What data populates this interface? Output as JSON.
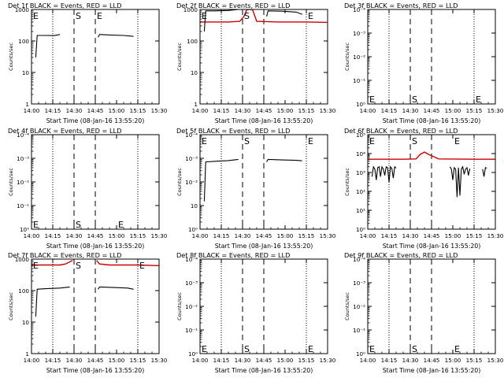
{
  "chart_data": [
    {
      "type": "line",
      "title": "Det 1f BLACK = Events, RED = LLD",
      "xlabel": "Start Time (08-Jan-16 13:55:20)",
      "ylabel": "Counts/sec",
      "yscale": "log",
      "ylim": [
        1,
        1000
      ],
      "ytick_labels": [
        "1",
        "10",
        "100",
        "1000"
      ],
      "xlim": [
        "14:00",
        "15:30"
      ],
      "xtick_labels": [
        "14:00",
        "14:15",
        "14:30",
        "14:45",
        "15:00",
        "15:15",
        "15:30"
      ],
      "markers": {
        "E_left": "14:00",
        "S": "14:30",
        "E_right": "14:45"
      },
      "marker_labels": {
        "E_left": "E",
        "S": "S",
        "E_right": "E"
      },
      "vlines_dotted": [
        "14:15",
        "15:15"
      ],
      "vlines_dashed": [
        "14:30",
        "14:45"
      ],
      "series": [
        {
          "color": "#000000",
          "segments": [
            {
              "x": [
                "14:03",
                "14:04",
                "14:10",
                "14:16",
                "14:20"
              ],
              "y": [
                30,
                150,
                150,
                148,
                160
              ]
            },
            {
              "x": [
                "14:47",
                "14:48",
                "14:55",
                "15:05",
                "15:12"
              ],
              "y": [
                130,
                160,
                155,
                150,
                140
              ]
            }
          ]
        }
      ]
    },
    {
      "type": "line",
      "title": "Det 2f BLACK = Events, RED = LLD",
      "xlabel": "Start Time (08-Jan-16 13:55:20)",
      "ylabel": "Counts/sec",
      "yscale": "log",
      "ylim": [
        1,
        1000
      ],
      "ytick_labels": [
        "1",
        "10",
        "100",
        "1000"
      ],
      "xlim": [
        "14:00",
        "15:30"
      ],
      "xtick_labels": [
        "14:00",
        "14:15",
        "14:30",
        "14:45",
        "15:00",
        "15:15",
        "15:30"
      ],
      "markers": {
        "E_left": "14:00",
        "S": "14:30",
        "E_right": "15:15"
      },
      "marker_labels": {
        "E_left": "E",
        "S": "S",
        "E_right": "E"
      },
      "vlines_dotted": [
        "14:15",
        "15:15"
      ],
      "vlines_dashed": [
        "14:30",
        "14:45"
      ],
      "series": [
        {
          "color": "#cc0000",
          "segments": [
            {
              "x": [
                "14:00",
                "14:20",
                "14:28",
                "14:31",
                "14:33",
                "14:37",
                "14:40",
                "14:55",
                "15:15",
                "15:30"
              ],
              "y": [
                400,
                400,
                420,
                600,
                1000,
                1000,
                420,
                400,
                400,
                390
              ]
            }
          ]
        },
        {
          "color": "#000000",
          "segments": [
            {
              "x": [
                "14:03",
                "14:04",
                "14:10",
                "14:20",
                "14:27"
              ],
              "y": [
                200,
                900,
                900,
                930,
                1000
              ]
            },
            {
              "x": [
                "14:47",
                "14:48",
                "14:58",
                "15:08",
                "15:12"
              ],
              "y": [
                600,
                900,
                880,
                820,
                700
              ]
            }
          ]
        }
      ]
    },
    {
      "type": "line",
      "title": "Det 3f BLACK = Events, RED = LLD",
      "xlabel": "Start Time (08-Jan-16 13:55:20)",
      "ylabel": "Counts/sec",
      "yscale": "log",
      "ylim": [
        1,
        10000
      ],
      "ytick_labels": [
        "10⁰",
        "10⁻¹",
        "10⁻²",
        "10⁻³",
        "10⁻⁴"
      ],
      "xlim": [
        "14:00",
        "15:30"
      ],
      "xtick_labels": [
        "14:00",
        "14:15",
        "14:30",
        "14:45",
        "15:00",
        "15:15",
        "15:30"
      ],
      "markers": {
        "E_left": "14:00",
        "S": "14:30",
        "E_right": "15:15"
      },
      "marker_labels": {
        "E_left": "E",
        "S": "S",
        "E_right": "E"
      },
      "vlines_dotted": [
        "14:15",
        "15:15"
      ],
      "vlines_dashed": [
        "14:30",
        "14:45"
      ],
      "series": []
    },
    {
      "type": "line",
      "title": "Det 4f BLACK = Events, RED = LLD",
      "xlabel": "Start Time (08-Jan-16 13:55:20)",
      "ylabel": "Counts/sec",
      "yscale": "log",
      "ylim": [
        1,
        10000
      ],
      "ytick_labels": [
        "10⁰",
        "10⁻¹",
        "10⁻²",
        "10⁻³",
        "10⁻⁴"
      ],
      "xlim": [
        "14:00",
        "15:30"
      ],
      "xtick_labels": [
        "14:00",
        "14:15",
        "14:30",
        "14:45",
        "15:00",
        "15:15",
        "15:30"
      ],
      "markers": {
        "E_left": "14:00",
        "S": "14:30",
        "E_right": "15:00"
      },
      "marker_labels": {
        "E_left": "E",
        "S": "S",
        "E_right": "E"
      },
      "vlines_dotted": [
        "14:15",
        "15:15"
      ],
      "vlines_dashed": [
        "14:30",
        "14:45"
      ],
      "series": []
    },
    {
      "type": "line",
      "title": "Det 5f BLACK = Events, RED = LLD",
      "xlabel": "Start Time (08-Jan-16 13:55:20)",
      "ylabel": "Counts/sec",
      "yscale": "log",
      "ylim": [
        1,
        10000
      ],
      "ytick_labels": [
        "10⁰",
        "10",
        "10⁻²",
        "10⁻³",
        "10⁻⁴"
      ],
      "xlim": [
        "14:00",
        "15:30"
      ],
      "xtick_labels": [
        "14:00",
        "14:15",
        "14:30",
        "14:45",
        "15:00",
        "15:15",
        "15:30"
      ],
      "markers": {
        "E_left": "14:00",
        "S": "14:30",
        "E_right": "15:15"
      },
      "marker_labels": {
        "E_left": "E",
        "S": "S",
        "E_right": "E"
      },
      "vlines_dotted": [
        "14:15",
        "15:15"
      ],
      "vlines_dashed": [
        "14:30",
        "14:45"
      ],
      "series": [
        {
          "color": "#000000",
          "segments": [
            {
              "x": [
                "14:03",
                "14:04",
                "14:12",
                "14:20",
                "14:27"
              ],
              "y": [
                15,
                700,
                750,
                800,
                900
              ]
            },
            {
              "x": [
                "14:47",
                "14:48",
                "14:58",
                "15:08",
                "15:12"
              ],
              "y": [
                700,
                900,
                850,
                820,
                780
              ]
            }
          ]
        }
      ]
    },
    {
      "type": "line",
      "title": "Det 6f BLACK = Events, RED = LLD",
      "xlabel": "Start Time (08-Jan-16 13:55:20)",
      "ylabel": "Counts/sec",
      "yscale": "log",
      "ylim": [
        1,
        100000
      ],
      "ytick_labels": [
        "10⁰",
        "10¹",
        "10²",
        "10³",
        "10⁴",
        "10⁵"
      ],
      "xlim": [
        "14:00",
        "15:30"
      ],
      "xtick_labels": [
        "14:00",
        "14:15",
        "14:30",
        "14:45",
        "15:00",
        "15:15",
        "15:30"
      ],
      "markers": {
        "E_left": "14:00",
        "S": "14:30",
        "E_right": "15:00"
      },
      "marker_labels": {
        "E_left": "E",
        "S": "S",
        "E_right": "E"
      },
      "vlines_dotted": [
        "14:15",
        "15:15"
      ],
      "vlines_dashed": [
        "14:30",
        "14:45"
      ],
      "series": [
        {
          "color": "#cc0000",
          "segments": [
            {
              "x": [
                "14:00",
                "14:25",
                "14:34",
                "14:37",
                "14:40",
                "14:43",
                "14:50",
                "15:15",
                "15:30"
              ],
              "y": [
                5000,
                5000,
                5200,
                9000,
                12000,
                9000,
                5200,
                5000,
                5000
              ]
            }
          ]
        },
        {
          "color": "#000000",
          "segments": [
            {
              "x": [
                "14:03",
                "14:04",
                "14:05",
                "14:06",
                "14:07",
                "14:08",
                "14:09",
                "14:10",
                "14:11",
                "14:12",
                "14:13",
                "14:14",
                "14:15",
                "14:16",
                "14:17",
                "14:18",
                "14:19",
                "14:20"
              ],
              "y": [
                600,
                2000,
                1500,
                400,
                1800,
                2000,
                600,
                2000,
                1500,
                700,
                2000,
                1800,
                300,
                2000,
                1600,
                500,
                2000,
                1700
              ]
            },
            {
              "x": [
                "14:58",
                "14:59",
                "15:00",
                "15:01",
                "15:02",
                "15:03",
                "15:04",
                "15:05",
                "15:06",
                "15:07",
                "15:08",
                "15:09",
                "15:10",
                "15:11",
                "15:12"
              ],
              "y": [
                2000,
                1500,
                400,
                1800,
                1500,
                50,
                1800,
                60,
                1500,
                2000,
                800,
                1500,
                1800,
                700,
                1600
              ]
            },
            {
              "x": [
                "15:21",
                "15:22",
                "15:23",
                "15:24"
              ],
              "y": [
                1500,
                600,
                1800,
                1700
              ]
            }
          ]
        }
      ]
    },
    {
      "type": "line",
      "title": "Det 7f BLACK = Events, RED = LLD",
      "xlabel": "Start Time (08-Jan-16 13:55:20)",
      "ylabel": "Counts/sec",
      "yscale": "log",
      "ylim": [
        1,
        1000
      ],
      "ytick_labels": [
        "1",
        "10",
        "100",
        "1000"
      ],
      "xlim": [
        "14:00",
        "15:30"
      ],
      "xtick_labels": [
        "14:00",
        "14:15",
        "14:30",
        "14:45",
        "15:00",
        "15:15",
        "15:30"
      ],
      "markers": {
        "E_left": "14:00",
        "S": "14:30",
        "E_right": "15:15"
      },
      "marker_labels": {
        "E_left": "E",
        "S": "S",
        "E_right": "E"
      },
      "vlines_dotted": [
        "14:15",
        "15:15"
      ],
      "vlines_dashed": [
        "14:30",
        "14:45"
      ],
      "series": [
        {
          "color": "#cc0000",
          "segments": [
            {
              "x": [
                "14:00",
                "14:20",
                "14:24",
                "14:29"
              ],
              "y": [
                650,
                650,
                700,
                900
              ]
            },
            {
              "x": [
                "14:46",
                "14:48",
                "14:55",
                "15:15",
                "15:30"
              ],
              "y": [
                900,
                700,
                650,
                650,
                620
              ]
            }
          ]
        },
        {
          "color": "#000000",
          "segments": [
            {
              "x": [
                "14:03",
                "14:04",
                "14:10",
                "14:20",
                "14:27"
              ],
              "y": [
                15,
                110,
                115,
                120,
                130
              ]
            },
            {
              "x": [
                "14:47",
                "14:48",
                "14:58",
                "15:08",
                "15:12"
              ],
              "y": [
                110,
                130,
                125,
                120,
                110
              ]
            }
          ]
        }
      ]
    },
    {
      "type": "line",
      "title": "Det 8f BLACK = Events, RED = LLD",
      "xlabel": "Start Time (08-Jan-16 13:55:20)",
      "ylabel": "Counts/sec",
      "yscale": "log",
      "ylim": [
        1,
        10000
      ],
      "ytick_labels": [
        "10⁰",
        "10⁻¹",
        "10⁻²",
        "10⁻³",
        "10⁻⁴"
      ],
      "xlim": [
        "14:00",
        "15:30"
      ],
      "xtick_labels": [
        "14:00",
        "14:15",
        "14:30",
        "14:45",
        "15:00",
        "15:15",
        "15:30"
      ],
      "markers": {
        "E_left": "14:00",
        "S": "14:30",
        "E_right": "15:15"
      },
      "marker_labels": {
        "E_left": "E",
        "S": "S",
        "E_right": "E"
      },
      "vlines_dotted": [
        "14:15",
        "15:15"
      ],
      "vlines_dashed": [
        "14:30",
        "14:45"
      ],
      "series": []
    },
    {
      "type": "line",
      "title": "Det 9f BLACK = Events, RED = LLD",
      "xlabel": "Start Time (08-Jan-16 13:55:20)",
      "ylabel": "Counts/sec",
      "yscale": "log",
      "ylim": [
        1,
        10000
      ],
      "ytick_labels": [
        "10⁰",
        "10⁻¹",
        "10⁻²",
        "10⁻³",
        "10⁻⁴"
      ],
      "xlim": [
        "14:00",
        "15:30"
      ],
      "xtick_labels": [
        "14:00",
        "14:15",
        "14:30",
        "14:45",
        "15:00",
        "15:15",
        "15:30"
      ],
      "markers": {
        "E_left": "14:00",
        "S": "14:30",
        "E_right": "15:00"
      },
      "marker_labels": {
        "E_left": "E",
        "S": "S",
        "E_right": "E"
      },
      "vlines_dotted": [
        "14:15",
        "15:15"
      ],
      "vlines_dashed": [
        "14:30",
        "14:45"
      ],
      "series": []
    }
  ]
}
